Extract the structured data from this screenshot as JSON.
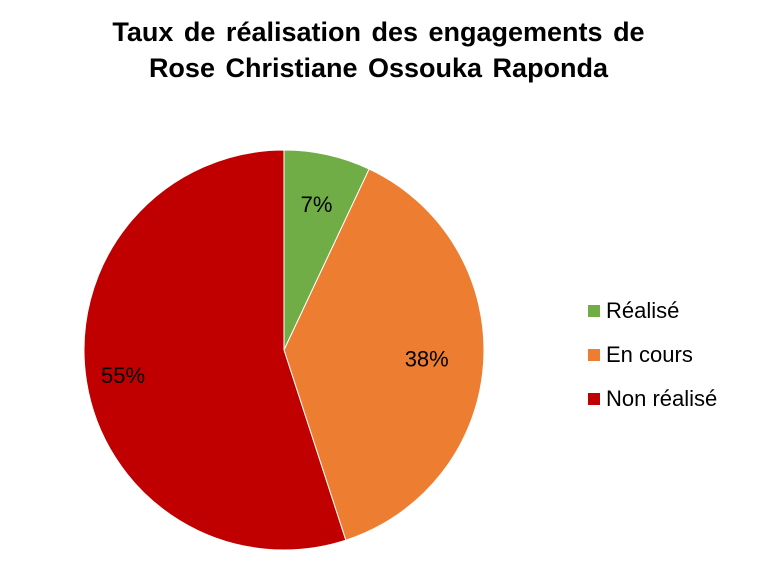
{
  "chart_data": {
    "type": "pie",
    "title_lines": [
      "Taux de réalisation des engagements de",
      "Rose Christiane Ossouka Raponda"
    ],
    "categories": [
      "Réalisé",
      "En cours",
      "Non réalisé"
    ],
    "values": [
      7,
      38,
      55
    ],
    "data_labels": [
      "7%",
      "38%",
      "55%"
    ],
    "colors": [
      "#70ad47",
      "#ed7d31",
      "#c00000"
    ],
    "start_angle": "12 o'clock",
    "direction": "clockwise",
    "legend_position": "right"
  }
}
